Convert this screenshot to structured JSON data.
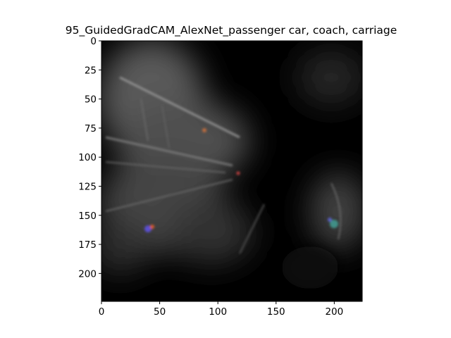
{
  "figure": {
    "title": "95_GuidedGradCAM_AlexNet_passenger car, coach, carriage"
  },
  "axes": {
    "x_ticks": [
      0,
      50,
      100,
      150,
      200
    ],
    "y_ticks": [
      0,
      25,
      50,
      75,
      100,
      125,
      150,
      175,
      200
    ],
    "x_range": [
      0,
      224
    ],
    "y_range": [
      0,
      224
    ]
  },
  "image": {
    "description_visible": "guided grad-cam heatmap",
    "background_color": "#000000"
  }
}
